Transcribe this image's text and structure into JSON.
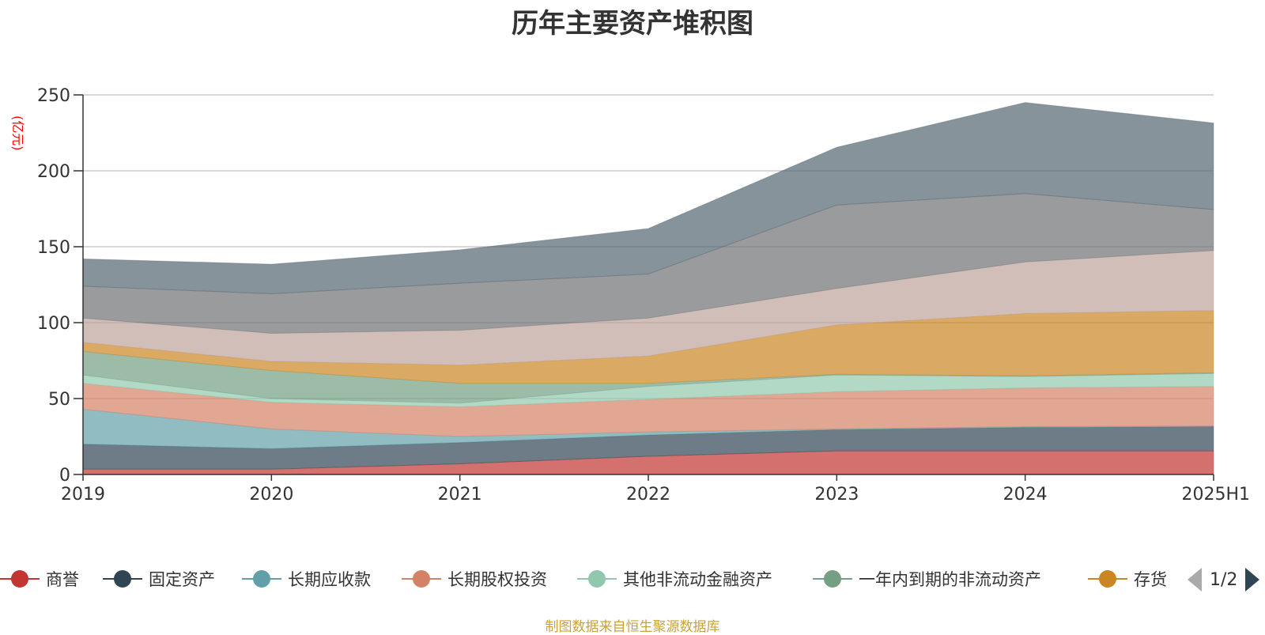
{
  "title": "历年主要资产堆积图",
  "unit_label": "(亿元)",
  "source_text": "制图数据来自恒生聚源数据库",
  "pager": {
    "text": "1/2"
  },
  "chart_data": {
    "type": "area",
    "stacked": true,
    "title": "历年主要资产堆积图",
    "ylabel": "(亿元)",
    "ylim": [
      0,
      250
    ],
    "yticks": [
      0,
      50,
      100,
      150,
      200,
      250
    ],
    "grid": true,
    "legend_position": "bottom",
    "categories": [
      "2019",
      "2020",
      "2021",
      "2022",
      "2023",
      "2024",
      "2025H1"
    ],
    "series": [
      {
        "name": "商誉",
        "color": "#c23531",
        "values": [
          3.5,
          3.5,
          7,
          12,
          15.5,
          15.5,
          15.5
        ]
      },
      {
        "name": "固定资产",
        "color": "#2f4554",
        "values": [
          16.5,
          13.5,
          14,
          14,
          14,
          15.5,
          16
        ]
      },
      {
        "name": "长期应收款",
        "color": "#61a0a8",
        "values": [
          23,
          13,
          4,
          2,
          0.5,
          0.5,
          0.5
        ]
      },
      {
        "name": "长期股权投资",
        "color": "#d48265",
        "values": [
          17,
          17.5,
          19.5,
          21.5,
          24.5,
          25.5,
          26
        ]
      },
      {
        "name": "其他非流动金融资产",
        "color": "#91c7ae",
        "values": [
          5.5,
          2.5,
          2.5,
          8.5,
          11,
          7.5,
          8.5
        ]
      },
      {
        "name": "一年内到期的非流动资产",
        "color": "#749f83",
        "values": [
          15.5,
          18.5,
          13,
          2,
          0.5,
          0.5,
          0.5
        ]
      },
      {
        "name": "存货",
        "color": "#ca8622",
        "values": [
          6,
          6,
          12,
          18,
          32.5,
          41,
          41
        ]
      },
      {
        "name": "",
        "color": "#bda29a",
        "values": [
          16,
          18.5,
          23,
          25,
          24,
          34,
          39.5
        ]
      },
      {
        "name": "",
        "color": "#6e7074",
        "values": [
          21,
          26,
          31,
          29,
          55,
          45,
          27
        ]
      },
      {
        "name": "",
        "color": "#546570",
        "values": [
          18,
          19.5,
          22,
          30,
          38,
          60,
          57
        ]
      }
    ]
  }
}
